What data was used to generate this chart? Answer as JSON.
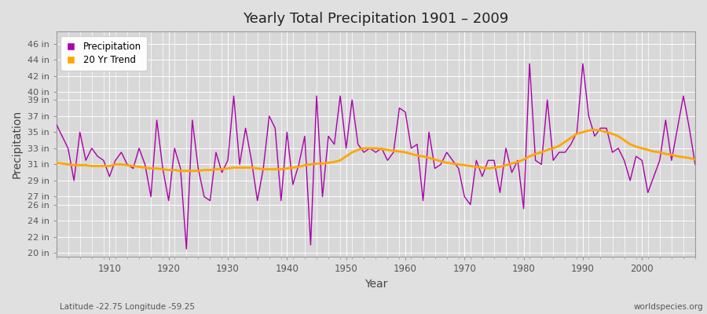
{
  "title": "Yearly Total Precipitation 1901 – 2009",
  "ylabel": "Precipitation",
  "xlabel": "Year",
  "footnote_left": "Latitude -22.75 Longitude -59.25",
  "footnote_right": "worldspecies.org",
  "legend_labels": [
    "Precipitation",
    "20 Yr Trend"
  ],
  "precip_color": "#AA00AA",
  "trend_color": "#FFA500",
  "bg_color": "#E0E0E0",
  "plot_bg_color": "#D8D8D8",
  "grid_color": "#FFFFFF",
  "ylim": [
    19.5,
    47.5
  ],
  "yticks": [
    20,
    22,
    24,
    26,
    27,
    29,
    31,
    33,
    35,
    37,
    39,
    40,
    42,
    44,
    46
  ],
  "years": [
    1901,
    1902,
    1903,
    1904,
    1905,
    1906,
    1907,
    1908,
    1909,
    1910,
    1911,
    1912,
    1913,
    1914,
    1915,
    1916,
    1917,
    1918,
    1919,
    1920,
    1921,
    1922,
    1923,
    1924,
    1925,
    1926,
    1927,
    1928,
    1929,
    1930,
    1931,
    1932,
    1933,
    1934,
    1935,
    1936,
    1937,
    1938,
    1939,
    1940,
    1941,
    1942,
    1943,
    1944,
    1945,
    1946,
    1947,
    1948,
    1949,
    1950,
    1951,
    1952,
    1953,
    1954,
    1955,
    1956,
    1957,
    1958,
    1959,
    1960,
    1961,
    1962,
    1963,
    1964,
    1965,
    1966,
    1967,
    1968,
    1969,
    1970,
    1971,
    1972,
    1973,
    1974,
    1975,
    1976,
    1977,
    1978,
    1979,
    1980,
    1981,
    1982,
    1983,
    1984,
    1985,
    1986,
    1987,
    1988,
    1989,
    1990,
    1991,
    1992,
    1993,
    1994,
    1995,
    1996,
    1997,
    1998,
    1999,
    2000,
    2001,
    2002,
    2003,
    2004,
    2005,
    2006,
    2007,
    2008,
    2009
  ],
  "precip": [
    36.0,
    34.5,
    33.0,
    29.0,
    35.0,
    31.5,
    33.0,
    32.0,
    31.5,
    29.5,
    31.5,
    32.5,
    31.0,
    30.5,
    33.0,
    31.0,
    27.0,
    36.5,
    30.5,
    26.5,
    33.0,
    30.5,
    20.5,
    36.5,
    30.5,
    27.0,
    26.5,
    32.5,
    30.0,
    31.5,
    39.5,
    31.0,
    35.5,
    31.5,
    26.5,
    30.5,
    37.0,
    35.5,
    26.5,
    35.0,
    28.5,
    31.0,
    34.5,
    21.0,
    39.5,
    27.0,
    34.5,
    33.5,
    39.5,
    33.0,
    39.0,
    33.5,
    32.5,
    33.0,
    32.5,
    33.0,
    31.5,
    32.5,
    38.0,
    37.5,
    33.0,
    33.5,
    26.5,
    35.0,
    30.5,
    31.0,
    32.5,
    31.5,
    30.5,
    27.0,
    26.0,
    31.5,
    29.5,
    31.5,
    31.5,
    27.5,
    33.0,
    30.0,
    31.5,
    25.5,
    43.5,
    31.5,
    31.0,
    39.0,
    31.5,
    32.5,
    32.5,
    33.5,
    35.0,
    43.5,
    37.0,
    34.5,
    35.5,
    35.5,
    32.5,
    33.0,
    31.5,
    29.0,
    32.0,
    31.5,
    27.5,
    29.5,
    31.5,
    36.5,
    31.5,
    35.5,
    39.5,
    35.5,
    31.0
  ],
  "trend": [
    31.2,
    31.1,
    31.0,
    30.9,
    30.9,
    30.9,
    30.8,
    30.8,
    30.8,
    30.8,
    31.0,
    31.0,
    30.9,
    30.8,
    30.7,
    30.6,
    30.5,
    30.5,
    30.4,
    30.3,
    30.3,
    30.2,
    30.2,
    30.2,
    30.2,
    30.3,
    30.3,
    30.4,
    30.4,
    30.5,
    30.6,
    30.6,
    30.6,
    30.6,
    30.5,
    30.4,
    30.4,
    30.4,
    30.4,
    30.5,
    30.6,
    30.7,
    30.9,
    31.0,
    31.1,
    31.1,
    31.2,
    31.3,
    31.5,
    32.0,
    32.5,
    32.8,
    33.0,
    33.0,
    33.0,
    32.9,
    32.8,
    32.7,
    32.6,
    32.5,
    32.3,
    32.1,
    32.0,
    31.8,
    31.6,
    31.4,
    31.2,
    31.1,
    31.0,
    30.9,
    30.8,
    30.7,
    30.6,
    30.5,
    30.6,
    30.7,
    30.9,
    31.1,
    31.3,
    31.6,
    32.0,
    32.3,
    32.5,
    32.8,
    33.0,
    33.3,
    33.8,
    34.3,
    34.8,
    35.0,
    35.2,
    35.3,
    35.2,
    35.0,
    34.8,
    34.5,
    34.0,
    33.5,
    33.2,
    33.0,
    32.8,
    32.6,
    32.5,
    32.3,
    32.2,
    32.0,
    31.9,
    31.8,
    31.6
  ]
}
